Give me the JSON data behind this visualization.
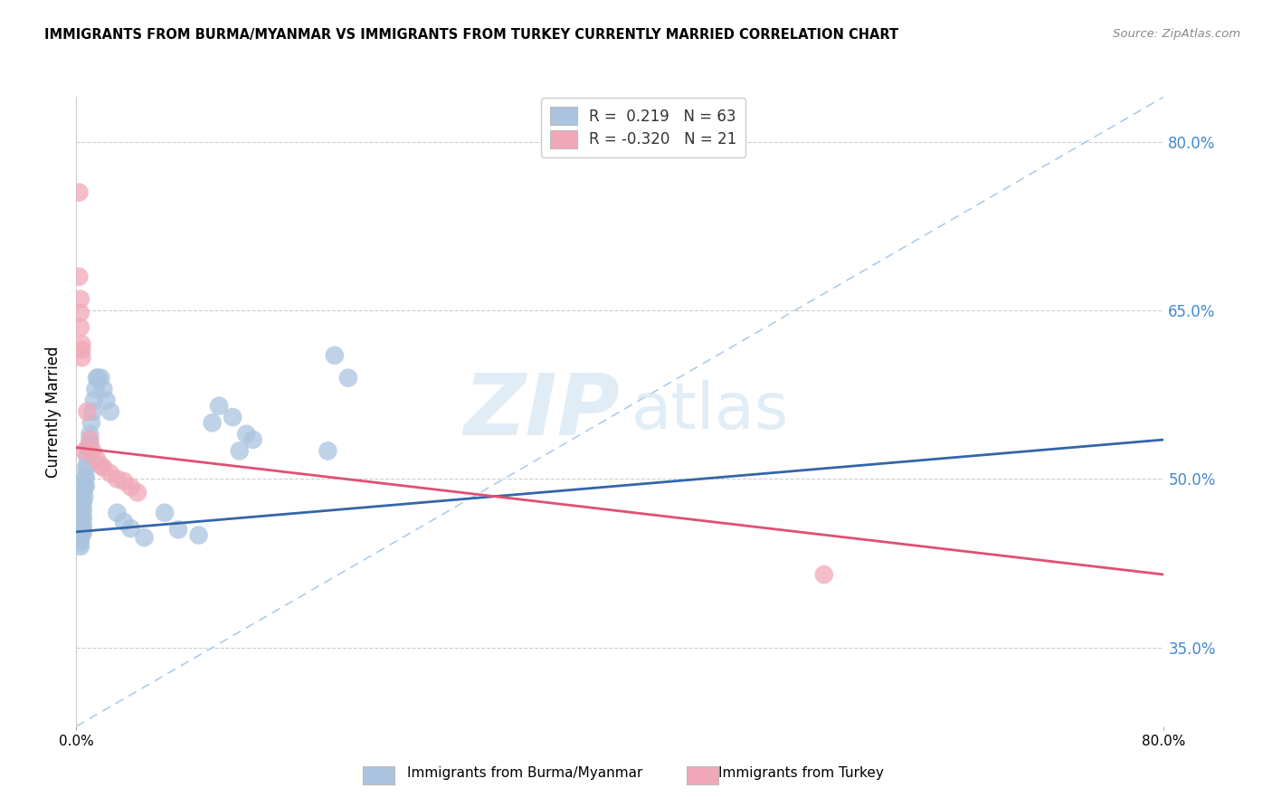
{
  "title": "IMMIGRANTS FROM BURMA/MYANMAR VS IMMIGRANTS FROM TURKEY CURRENTLY MARRIED CORRELATION CHART",
  "source": "Source: ZipAtlas.com",
  "ylabel": "Currently Married",
  "xlim": [
    0.0,
    0.8
  ],
  "ylim": [
    0.28,
    0.84
  ],
  "yticks": [
    0.35,
    0.5,
    0.65,
    0.8
  ],
  "ytick_labels": [
    "35.0%",
    "50.0%",
    "65.0%",
    "80.0%"
  ],
  "watermark_zip": "ZIP",
  "watermark_atlas": "atlas",
  "legend_blue_r": " 0.219",
  "legend_blue_n": "63",
  "legend_pink_r": "-0.320",
  "legend_pink_n": "21",
  "blue_color": "#aac4df",
  "pink_color": "#f0a8b8",
  "blue_line_color": "#3366aa",
  "pink_line_color": "#e05070",
  "dashed_line_color": "#b0cce8",
  "right_axis_color": "#4488cc",
  "blue_line_x": [
    0.0,
    0.8
  ],
  "blue_line_y": [
    0.453,
    0.535
  ],
  "pink_line_x": [
    0.0,
    0.8
  ],
  "pink_line_y": [
    0.528,
    0.415
  ],
  "dash_line_x": [
    0.0,
    0.8
  ],
  "dash_line_y": [
    0.28,
    0.84
  ],
  "blue_scatter_x": [
    0.002,
    0.002,
    0.003,
    0.003,
    0.003,
    0.003,
    0.003,
    0.003,
    0.003,
    0.003,
    0.003,
    0.003,
    0.004,
    0.004,
    0.004,
    0.004,
    0.004,
    0.004,
    0.004,
    0.005,
    0.005,
    0.005,
    0.005,
    0.005,
    0.005,
    0.005,
    0.006,
    0.006,
    0.006,
    0.007,
    0.007,
    0.007,
    0.008,
    0.008,
    0.009,
    0.01,
    0.01,
    0.011,
    0.012,
    0.013,
    0.014,
    0.015,
    0.016,
    0.018,
    0.02,
    0.022,
    0.025,
    0.03,
    0.035,
    0.04,
    0.05,
    0.065,
    0.075,
    0.09,
    0.1,
    0.105,
    0.115,
    0.12,
    0.125,
    0.13,
    0.185,
    0.19,
    0.2
  ],
  "blue_scatter_y": [
    0.478,
    0.468,
    0.484,
    0.476,
    0.47,
    0.463,
    0.458,
    0.452,
    0.448,
    0.446,
    0.443,
    0.44,
    0.488,
    0.482,
    0.476,
    0.47,
    0.464,
    0.458,
    0.452,
    0.495,
    0.488,
    0.479,
    0.472,
    0.465,
    0.458,
    0.452,
    0.5,
    0.492,
    0.484,
    0.51,
    0.502,
    0.494,
    0.52,
    0.512,
    0.528,
    0.54,
    0.532,
    0.55,
    0.56,
    0.57,
    0.58,
    0.59,
    0.59,
    0.59,
    0.58,
    0.57,
    0.56,
    0.47,
    0.462,
    0.456,
    0.448,
    0.47,
    0.455,
    0.45,
    0.55,
    0.565,
    0.555,
    0.525,
    0.54,
    0.535,
    0.525,
    0.61,
    0.59
  ],
  "pink_scatter_x": [
    0.002,
    0.002,
    0.003,
    0.003,
    0.003,
    0.004,
    0.004,
    0.004,
    0.006,
    0.008,
    0.01,
    0.012,
    0.015,
    0.018,
    0.02,
    0.025,
    0.03,
    0.035,
    0.04,
    0.045,
    0.55
  ],
  "pink_scatter_y": [
    0.755,
    0.68,
    0.66,
    0.648,
    0.635,
    0.62,
    0.615,
    0.608,
    0.525,
    0.56,
    0.535,
    0.525,
    0.518,
    0.512,
    0.51,
    0.505,
    0.5,
    0.498,
    0.493,
    0.488,
    0.415
  ]
}
